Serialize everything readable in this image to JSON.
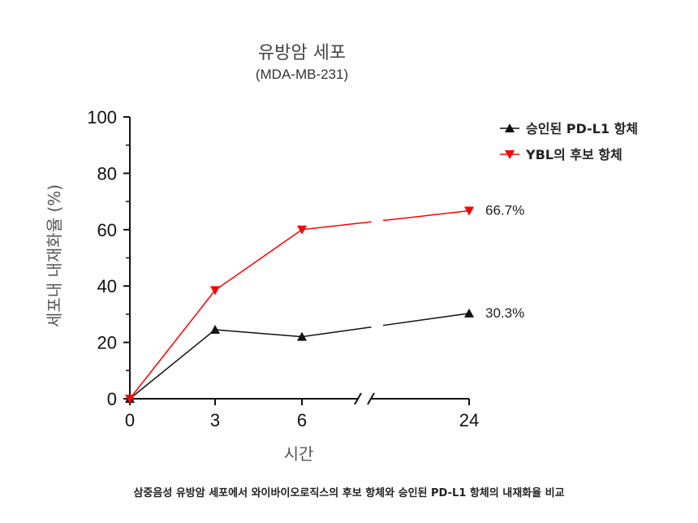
{
  "chart_data": {
    "type": "line",
    "title": "유방암 세포",
    "subtitle": "(MDA-MB-231)",
    "xlabel": "시간",
    "ylabel": "세포내 내재화율 (%)",
    "categories": [
      "0",
      "3",
      "6",
      "24"
    ],
    "ylim": [
      0,
      100
    ],
    "yticks": [
      0,
      20,
      40,
      60,
      80,
      100
    ],
    "axis_break_between": [
      "6",
      "24"
    ],
    "grid": false,
    "legend_position": "top-right",
    "series": [
      {
        "name": "승인된 PD-L1 항체",
        "color": "#111111",
        "marker": "triangle-up",
        "values": [
          0,
          24.5,
          22,
          30.3
        ],
        "end_label": "30.3%"
      },
      {
        "name": "YBL의 후보 항체",
        "color": "#ff0000",
        "marker": "triangle-down",
        "values": [
          0,
          38.5,
          60,
          66.7
        ],
        "end_label": "66.7%"
      }
    ]
  },
  "caption": "삼중음성 유방암 세포에서 와이바이오로직스의 후보 항체와 승인된 PD-L1 항체의 내재화율 비교"
}
